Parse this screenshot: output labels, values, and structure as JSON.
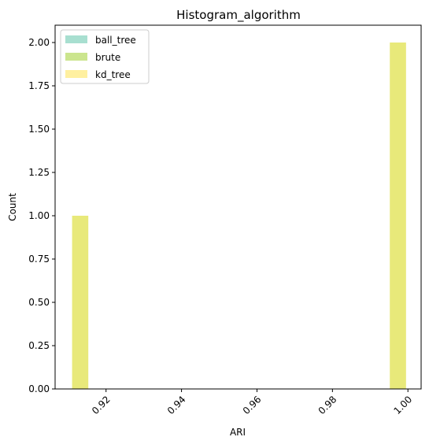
{
  "chart_data": {
    "type": "bar",
    "title": "Histogram_algorithm",
    "xlabel": "ARI",
    "ylabel": "Count",
    "xlim": [
      0.9065,
      1.0035
    ],
    "ylim": [
      0,
      2.1
    ],
    "grid": false,
    "legend_position": "top-left",
    "x_ticks": [
      "0.92",
      "0.94",
      "0.96",
      "0.98",
      "1.00"
    ],
    "x_tick_values": [
      0.92,
      0.94,
      0.96,
      0.98,
      1.0
    ],
    "x_tick_rotation": 45,
    "y_ticks": [
      "0.00",
      "0.25",
      "0.50",
      "0.75",
      "1.00",
      "1.25",
      "1.50",
      "1.75",
      "2.00"
    ],
    "y_tick_values": [
      0.0,
      0.25,
      0.5,
      0.75,
      1.0,
      1.25,
      1.5,
      1.75,
      2.0
    ],
    "series": [
      {
        "name": "ball_tree",
        "color": "#a8dfd0",
        "bins": []
      },
      {
        "name": "brute",
        "color": "#cbe58e",
        "bins": []
      },
      {
        "name": "kd_tree",
        "color": "#fff0a0",
        "bins": []
      }
    ],
    "visible_bars": [
      {
        "x_start": 0.911,
        "x_end": 0.9153,
        "count": 1,
        "color": "#e8e97a"
      },
      {
        "x_start": 0.9952,
        "x_end": 0.9995,
        "count": 2,
        "color": "#e8e97a"
      }
    ]
  }
}
